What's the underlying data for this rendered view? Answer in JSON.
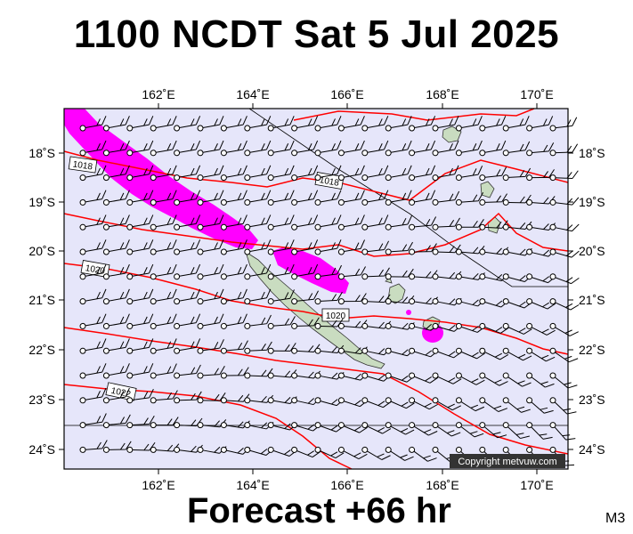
{
  "title": "1100 NCDT Sat 5 Jul 2025",
  "footer": "Forecast +66 hr",
  "model": "M3",
  "copyright": "Copyright metvuw.com",
  "axes": {
    "lon_labels": [
      "162˚E",
      "164˚E",
      "166˚E",
      "168˚E",
      "170˚E"
    ],
    "lat_labels": [
      "18˚S",
      "19˚S",
      "20˚S",
      "21˚S",
      "22˚S",
      "23˚S",
      "24˚S"
    ]
  },
  "isobar_labels": [
    "1018",
    "1018",
    "1020",
    "1020",
    "1022"
  ],
  "colors": {
    "ocean": "#e6e6fa",
    "land": "#c9dcc0",
    "isobar": "#ff0000",
    "rain": "#ff00ff",
    "wind": "#000000"
  },
  "map_data": {
    "type": "weather-forecast-map",
    "region": "New Caledonia",
    "lon_range": [
      160,
      171
    ],
    "lat_range": [
      -24.4,
      -17.1
    ],
    "wind": "northwest-pointing barbs on a regular grid",
    "precipitation": "magenta band from northwest to east of New Caledonia"
  }
}
